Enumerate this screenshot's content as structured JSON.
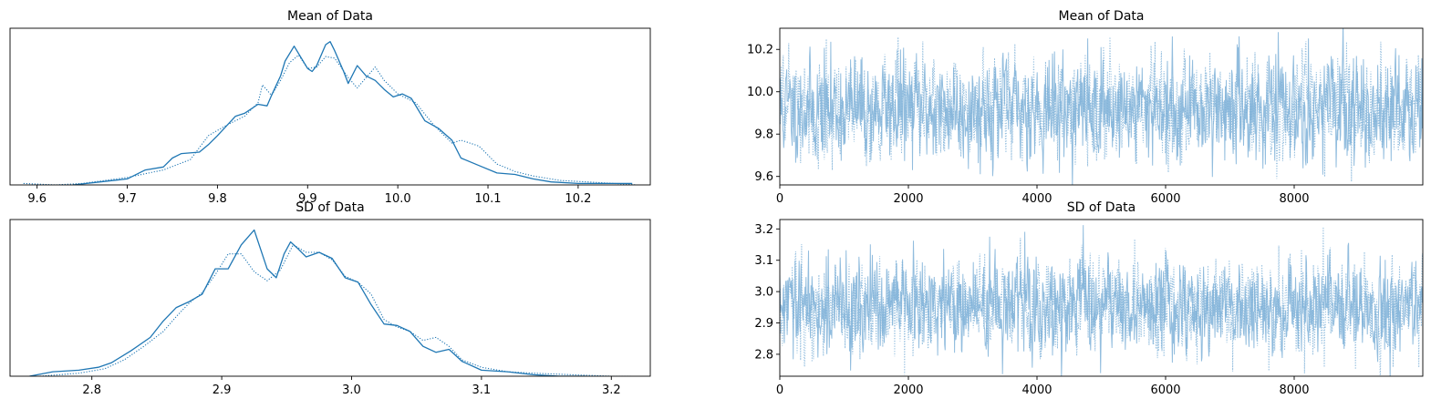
{
  "colors": {
    "line": "#1f77b4",
    "trace": "#7fb2d8",
    "axes": "#000000"
  },
  "chart_data": [
    {
      "type": "line",
      "panel": "kde",
      "title": "Mean of Data",
      "xlim": [
        9.57,
        10.28
      ],
      "xticks": [
        9.6,
        9.7,
        9.8,
        9.9,
        10.0,
        10.1,
        10.2
      ],
      "xtick_labels": [
        "9.6",
        "9.7",
        "9.8",
        "9.9",
        "10.0",
        "10.1",
        "10.2"
      ],
      "ylim": [
        0,
        1.05
      ],
      "y_tick_labels_shown": false,
      "series": [
        {
          "style": "solid",
          "x": [
            9.64,
            9.67,
            9.7,
            9.72,
            9.74,
            9.75,
            9.76,
            9.78,
            9.79,
            9.8,
            9.82,
            9.83,
            9.845,
            9.855,
            9.86,
            9.87,
            9.875,
            9.885,
            9.893,
            9.9,
            9.905,
            9.91,
            9.92,
            9.925,
            9.93,
            9.94,
            9.945,
            9.955,
            9.965,
            9.975,
            9.985,
            9.995,
            10.005,
            10.015,
            10.03,
            10.045,
            10.06,
            10.07,
            10.09,
            10.11,
            10.13,
            10.15,
            10.17,
            10.2,
            10.23,
            10.26
          ],
          "y": [
            0.0,
            0.02,
            0.04,
            0.1,
            0.12,
            0.18,
            0.21,
            0.22,
            0.27,
            0.33,
            0.46,
            0.48,
            0.54,
            0.53,
            0.6,
            0.73,
            0.83,
            0.93,
            0.85,
            0.78,
            0.76,
            0.8,
            0.94,
            0.96,
            0.9,
            0.76,
            0.68,
            0.8,
            0.73,
            0.7,
            0.64,
            0.59,
            0.61,
            0.58,
            0.43,
            0.38,
            0.3,
            0.18,
            0.13,
            0.08,
            0.07,
            0.04,
            0.02,
            0.01,
            0.01,
            0.01
          ]
        },
        {
          "style": "dotted",
          "x": [
            9.585,
            9.62,
            9.65,
            9.7,
            9.74,
            9.77,
            9.79,
            9.81,
            9.83,
            9.845,
            9.85,
            9.86,
            9.87,
            9.88,
            9.89,
            9.9,
            9.91,
            9.92,
            9.93,
            9.945,
            9.955,
            9.965,
            9.975,
            9.985,
            10.0,
            10.02,
            10.04,
            10.06,
            10.07,
            10.08,
            10.09,
            10.11,
            10.13,
            10.15,
            10.18,
            10.21,
            10.24,
            10.265
          ],
          "y": [
            0.01,
            0.0,
            0.01,
            0.05,
            0.1,
            0.17,
            0.33,
            0.4,
            0.46,
            0.55,
            0.67,
            0.6,
            0.7,
            0.82,
            0.87,
            0.78,
            0.79,
            0.86,
            0.85,
            0.72,
            0.65,
            0.72,
            0.79,
            0.7,
            0.61,
            0.55,
            0.4,
            0.28,
            0.3,
            0.28,
            0.26,
            0.14,
            0.09,
            0.06,
            0.03,
            0.02,
            0.01,
            0.0
          ]
        }
      ]
    },
    {
      "type": "line",
      "panel": "trace",
      "title": "Mean of Data",
      "xlim": [
        0,
        10000
      ],
      "xticks": [
        0,
        2000,
        4000,
        6000,
        8000
      ],
      "xtick_labels": [
        "0",
        "2000",
        "4000",
        "6000",
        "8000"
      ],
      "ylim": [
        9.56,
        10.3
      ],
      "yticks": [
        9.6,
        9.8,
        10.0,
        10.2
      ],
      "ytick_labels": [
        "9.6",
        "9.8",
        "10.0",
        "10.2"
      ],
      "trace_center": 9.92,
      "trace_spread": 0.12,
      "trace_seed": 11
    },
    {
      "type": "line",
      "panel": "kde",
      "title": "SD of Data",
      "xlim": [
        2.737,
        3.23
      ],
      "xticks": [
        2.8,
        2.9,
        3.0,
        3.1,
        3.2
      ],
      "xtick_labels": [
        "2.8",
        "2.9",
        "3.0",
        "3.1",
        "3.2"
      ],
      "ylim": [
        0,
        1.05
      ],
      "y_tick_labels_shown": false,
      "series": [
        {
          "style": "solid",
          "x": [
            2.752,
            2.77,
            2.79,
            2.805,
            2.815,
            2.83,
            2.845,
            2.855,
            2.865,
            2.875,
            2.885,
            2.895,
            2.905,
            2.915,
            2.925,
            2.935,
            2.942,
            2.948,
            2.953,
            2.958,
            2.965,
            2.975,
            2.985,
            2.995,
            3.005,
            3.015,
            3.025,
            3.035,
            3.045,
            3.055,
            3.065,
            3.075,
            3.085,
            3.1,
            3.12,
            3.14,
            3.16,
            3.18
          ],
          "y": [
            0.0,
            0.03,
            0.04,
            0.06,
            0.09,
            0.17,
            0.26,
            0.37,
            0.46,
            0.5,
            0.55,
            0.72,
            0.72,
            0.88,
            0.98,
            0.72,
            0.66,
            0.82,
            0.9,
            0.86,
            0.8,
            0.83,
            0.79,
            0.66,
            0.63,
            0.48,
            0.35,
            0.34,
            0.3,
            0.2,
            0.16,
            0.18,
            0.1,
            0.04,
            0.03,
            0.01,
            0.0,
            0.0
          ]
        },
        {
          "style": "dotted",
          "x": [
            2.76,
            2.79,
            2.81,
            2.825,
            2.84,
            2.855,
            2.865,
            2.875,
            2.885,
            2.895,
            2.905,
            2.915,
            2.925,
            2.935,
            2.945,
            2.955,
            2.965,
            2.975,
            2.985,
            2.995,
            3.005,
            3.015,
            3.025,
            3.035,
            3.045,
            3.055,
            3.065,
            3.075,
            3.085,
            3.1,
            3.12,
            3.14,
            3.17,
            3.2,
            3.215
          ],
          "y": [
            0.0,
            0.02,
            0.05,
            0.11,
            0.2,
            0.3,
            0.4,
            0.49,
            0.56,
            0.68,
            0.82,
            0.82,
            0.7,
            0.64,
            0.71,
            0.88,
            0.83,
            0.83,
            0.78,
            0.67,
            0.63,
            0.55,
            0.38,
            0.33,
            0.3,
            0.24,
            0.26,
            0.2,
            0.11,
            0.06,
            0.03,
            0.02,
            0.01,
            0.0,
            0.0
          ]
        }
      ]
    },
    {
      "type": "line",
      "panel": "trace",
      "title": "SD of Data",
      "xlim": [
        0,
        10000
      ],
      "xticks": [
        0,
        2000,
        4000,
        6000,
        8000
      ],
      "xtick_labels": [
        "0",
        "2000",
        "4000",
        "6000",
        "8000"
      ],
      "ylim": [
        2.73,
        3.23
      ],
      "yticks": [
        2.8,
        2.9,
        3.0,
        3.1,
        3.2
      ],
      "ytick_labels": [
        "2.8",
        "2.9",
        "3.0",
        "3.1",
        "3.2"
      ],
      "trace_center": 2.95,
      "trace_spread": 0.075,
      "trace_seed": 29
    }
  ]
}
